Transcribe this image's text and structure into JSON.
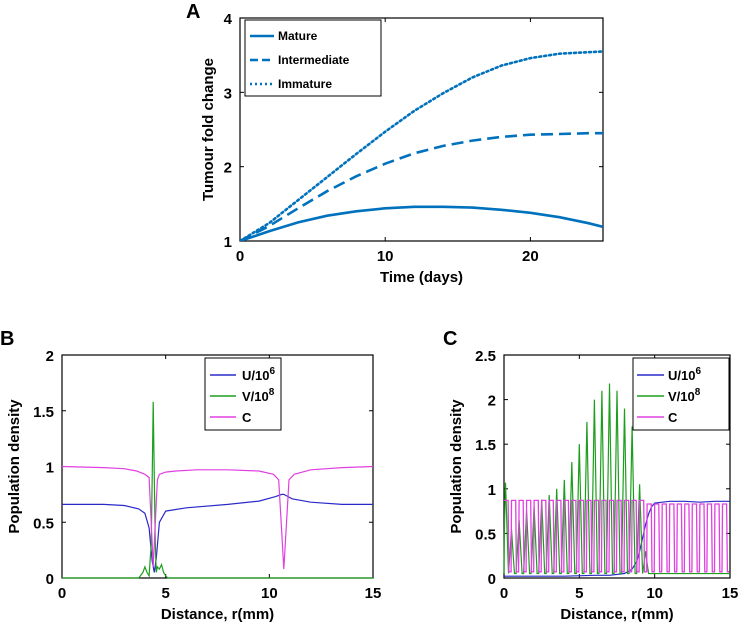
{
  "colors": {
    "blue": "#0072BD",
    "navy": "#2A2AC8",
    "green": "#1E9E1E",
    "magenta": "#E040E0"
  },
  "chart_data": [
    {
      "panel": "A",
      "type": "line",
      "xlabel": "Time (days)",
      "ylabel": "Tumour fold change",
      "xlim": [
        0,
        25
      ],
      "ylim": [
        1,
        4
      ],
      "xticks": [
        "0",
        "10",
        "20"
      ],
      "yticks": [
        "1",
        "2",
        "3",
        "4"
      ],
      "legend_position": "top-left",
      "series": [
        {
          "name": "Mature",
          "style": "solid",
          "x": [
            0,
            2,
            4,
            6,
            8,
            10,
            12,
            14,
            16,
            18,
            20,
            22,
            24,
            25
          ],
          "y": [
            1.0,
            1.13,
            1.25,
            1.34,
            1.4,
            1.44,
            1.46,
            1.46,
            1.45,
            1.42,
            1.38,
            1.32,
            1.24,
            1.19
          ]
        },
        {
          "name": "Intermediate",
          "style": "dashed",
          "x": [
            0,
            2,
            4,
            6,
            8,
            10,
            12,
            14,
            16,
            18,
            20,
            22,
            24,
            25
          ],
          "y": [
            1.0,
            1.2,
            1.44,
            1.67,
            1.87,
            2.04,
            2.18,
            2.28,
            2.35,
            2.4,
            2.43,
            2.44,
            2.45,
            2.45
          ]
        },
        {
          "name": "Immature",
          "style": "dotted",
          "x": [
            0,
            2,
            4,
            6,
            8,
            10,
            12,
            14,
            16,
            18,
            20,
            22,
            24,
            25
          ],
          "y": [
            1.0,
            1.24,
            1.55,
            1.86,
            2.17,
            2.47,
            2.75,
            2.99,
            3.2,
            3.36,
            3.46,
            3.52,
            3.54,
            3.55
          ]
        }
      ]
    },
    {
      "panel": "B",
      "type": "line",
      "xlabel": "Distance, r(mm)",
      "ylabel": "Population density",
      "xlim": [
        0,
        15
      ],
      "ylim": [
        0,
        2
      ],
      "xticks": [
        "0",
        "5",
        "10",
        "15"
      ],
      "yticks": [
        "0",
        "0.5",
        "1",
        "1.5",
        "2"
      ],
      "legend_position": "top-right",
      "series": [
        {
          "name": "U/10",
          "sup": "6",
          "color": "navy",
          "x": [
            0,
            2,
            3,
            3.7,
            4.0,
            4.2,
            4.35,
            4.45,
            4.55,
            4.7,
            5.0,
            6,
            8,
            9.5,
            10.3,
            10.6,
            10.7,
            10.8,
            11.1,
            12,
            13.5,
            15
          ],
          "y": [
            0.66,
            0.66,
            0.65,
            0.62,
            0.58,
            0.45,
            0.15,
            0.05,
            0.18,
            0.5,
            0.6,
            0.63,
            0.66,
            0.69,
            0.73,
            0.75,
            0.75,
            0.74,
            0.71,
            0.68,
            0.66,
            0.66
          ]
        },
        {
          "name": "V/10",
          "sup": "8",
          "color": "green",
          "x": [
            0,
            3.7,
            3.9,
            4.0,
            4.1,
            4.2,
            4.3,
            4.35,
            4.4,
            4.45,
            4.5,
            4.55,
            4.6,
            4.7,
            4.8,
            4.9,
            5.0,
            5.1,
            15
          ],
          "y": [
            0,
            0,
            0.05,
            0.1,
            0.05,
            0.02,
            0.3,
            0.9,
            1.58,
            0.9,
            0.3,
            0.05,
            0.1,
            0.08,
            0.12,
            0.05,
            0.02,
            0,
            0
          ]
        },
        {
          "name": "C",
          "color": "magenta",
          "x": [
            0,
            2,
            3,
            3.6,
            4.0,
            4.2,
            4.3,
            4.4,
            4.5,
            4.6,
            4.7,
            5.0,
            5.5,
            6.5,
            8,
            9.5,
            10.2,
            10.45,
            10.6,
            10.7,
            10.8,
            10.95,
            11.2,
            12,
            13.5,
            15
          ],
          "y": [
            1.0,
            0.99,
            0.98,
            0.96,
            0.93,
            0.9,
            0.5,
            0.1,
            0.5,
            0.88,
            0.93,
            0.95,
            0.96,
            0.97,
            0.97,
            0.96,
            0.93,
            0.88,
            0.4,
            0.08,
            0.4,
            0.88,
            0.93,
            0.97,
            0.99,
            1.0
          ]
        }
      ]
    },
    {
      "panel": "C",
      "type": "line",
      "xlabel": "Distance, r(mm)",
      "ylabel": "Population density",
      "xlim": [
        0,
        15
      ],
      "ylim": [
        0,
        2.5
      ],
      "xticks": [
        "0",
        "5",
        "10",
        "15"
      ],
      "yticks": [
        "0",
        "0.5",
        "1",
        "1.5",
        "2",
        "2.5"
      ],
      "legend_position": "top-right",
      "series": [
        {
          "name": "U/10",
          "sup": "6",
          "color": "navy",
          "x": [
            0,
            2,
            4,
            6,
            7,
            8,
            8.5,
            8.8,
            9.0,
            9.2,
            9.4,
            9.6,
            9.8,
            10,
            10.5,
            11,
            12,
            13,
            14,
            15
          ],
          "y": [
            0.02,
            0.02,
            0.02,
            0.03,
            0.03,
            0.05,
            0.1,
            0.18,
            0.3,
            0.45,
            0.6,
            0.72,
            0.8,
            0.84,
            0.85,
            0.86,
            0.86,
            0.85,
            0.86,
            0.86
          ]
        },
        {
          "name": "V/10",
          "sup": "8",
          "color": "green",
          "peak_centers_x": [
            0.1,
            0.5,
            1.0,
            1.5,
            2.0,
            2.5,
            3.0,
            3.5,
            4.0,
            4.5,
            5.0,
            5.5,
            6.0,
            6.5,
            7.0,
            7.5,
            8.0,
            8.5,
            9.0,
            9.4
          ],
          "peak_heights_y": [
            1.07,
            0.55,
            0.65,
            0.75,
            0.8,
            0.88,
            0.93,
            1.0,
            1.1,
            1.3,
            1.5,
            1.75,
            2.0,
            2.1,
            2.18,
            2.1,
            1.9,
            1.7,
            1.05,
            0.3
          ],
          "baseline_y": 0.05
        },
        {
          "name": "C",
          "color": "magenta",
          "oscillation": {
            "period": 0.5,
            "x_start": 0.0,
            "x_end": 15.0,
            "high": 0.87,
            "low": 0.07,
            "upper_high_after_x": 9.5,
            "upper_high": 0.83
          }
        }
      ]
    }
  ],
  "panels": {
    "A": {
      "letter": "A",
      "legend": [
        "Mature",
        "Intermediate",
        "Immature"
      ]
    },
    "B": {
      "letter": "B"
    },
    "C": {
      "letter": "C"
    }
  }
}
